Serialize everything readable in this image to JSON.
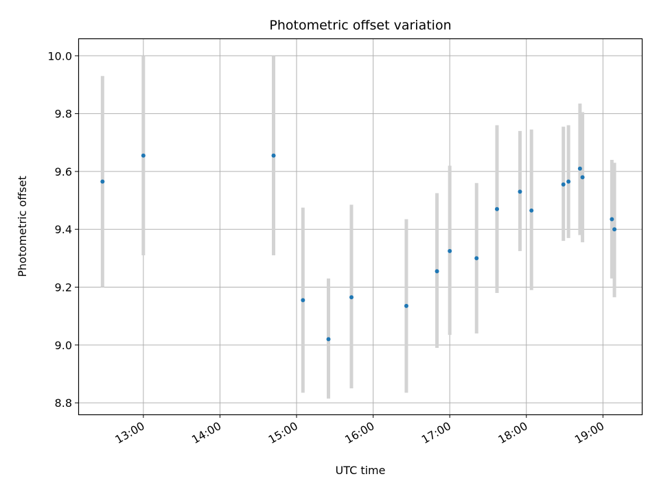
{
  "chart_data": {
    "type": "scatter",
    "title": "Photometric offset variation",
    "xlabel": "UTC time",
    "ylabel": "Photometric offset",
    "x_unit": "UTC time of day",
    "xlim": [
      "12:09",
      "19:31"
    ],
    "ylim": [
      8.76,
      10.06
    ],
    "x_ticks": [
      "13:00",
      "14:00",
      "15:00",
      "16:00",
      "17:00",
      "18:00",
      "19:00"
    ],
    "y_ticks": [
      "8.8",
      "9.0",
      "9.2",
      "9.4",
      "9.6",
      "9.8",
      "10.0"
    ],
    "grid": true,
    "legend": "none",
    "marker_color": "#1f77b4",
    "errorbar_color": "#d3d3d3",
    "series": [
      {
        "points": [
          {
            "x": "12:28",
            "y": 9.565,
            "low": 9.2,
            "high": 9.93
          },
          {
            "x": "13:00",
            "y": 9.655,
            "low": 9.31,
            "high": 10.0
          },
          {
            "x": "14:42",
            "y": 9.655,
            "low": 9.31,
            "high": 10.0
          },
          {
            "x": "15:05",
            "y": 9.155,
            "low": 8.835,
            "high": 9.475
          },
          {
            "x": "15:25",
            "y": 9.02,
            "low": 8.815,
            "high": 9.23
          },
          {
            "x": "15:43",
            "y": 9.165,
            "low": 8.85,
            "high": 9.485
          },
          {
            "x": "16:26",
            "y": 9.135,
            "low": 8.835,
            "high": 9.435
          },
          {
            "x": "16:50",
            "y": 9.255,
            "low": 8.99,
            "high": 9.525
          },
          {
            "x": "17:00",
            "y": 9.325,
            "low": 9.035,
            "high": 9.62
          },
          {
            "x": "17:21",
            "y": 9.3,
            "low": 9.04,
            "high": 9.56
          },
          {
            "x": "17:37",
            "y": 9.47,
            "low": 9.18,
            "high": 9.76
          },
          {
            "x": "17:55",
            "y": 9.53,
            "low": 9.325,
            "high": 9.74
          },
          {
            "x": "18:04",
            "y": 9.465,
            "low": 9.19,
            "high": 9.745
          },
          {
            "x": "18:29",
            "y": 9.555,
            "low": 9.36,
            "high": 9.755
          },
          {
            "x": "18:33",
            "y": 9.565,
            "low": 9.37,
            "high": 9.76
          },
          {
            "x": "18:42",
            "y": 9.61,
            "low": 9.38,
            "high": 9.835
          },
          {
            "x": "18:44",
            "y": 9.58,
            "low": 9.355,
            "high": 9.805
          },
          {
            "x": "19:07",
            "y": 9.435,
            "low": 9.23,
            "high": 9.64
          },
          {
            "x": "19:09",
            "y": 9.4,
            "low": 9.165,
            "high": 9.63
          }
        ]
      }
    ]
  }
}
